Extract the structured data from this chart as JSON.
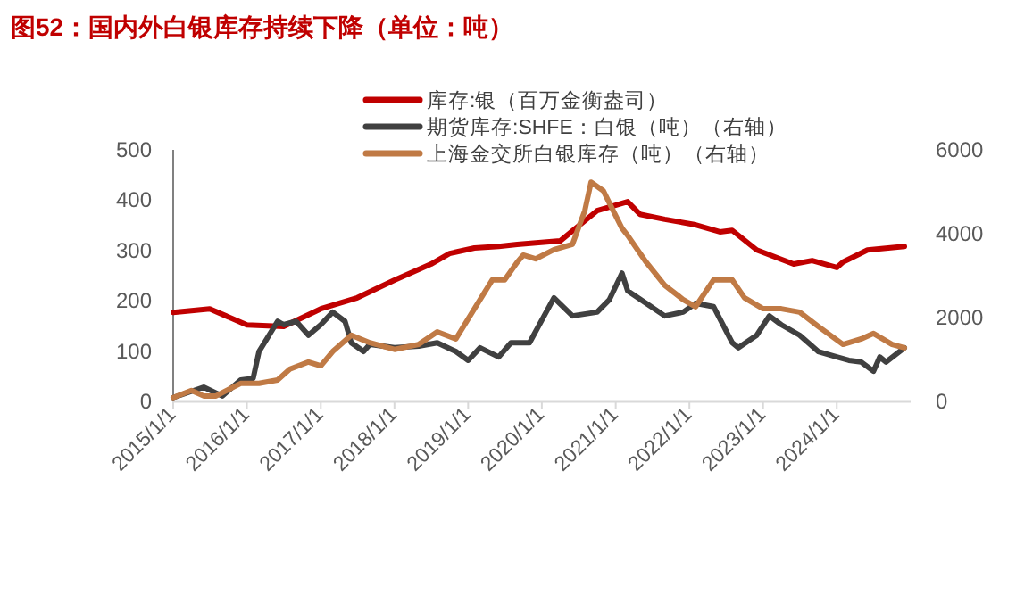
{
  "chart_data": {
    "type": "line",
    "title": "图52：国内外白银库存持续下降（单位：吨）",
    "legend": "top",
    "grid": false,
    "line_style": "solid",
    "marker": "none",
    "xlim": [
      "2015-01-01",
      "2025-01-01"
    ],
    "xticks": [
      {
        "value": "2015-01-01",
        "label": "2015/1/1"
      },
      {
        "value": "2016-01-01",
        "label": "2016/1/1"
      },
      {
        "value": "2017-01-01",
        "label": "2017/1/1"
      },
      {
        "value": "2018-01-01",
        "label": "2018/1/1"
      },
      {
        "value": "2019-01-01",
        "label": "2019/1/1"
      },
      {
        "value": "2020-01-01",
        "label": "2020/1/1"
      },
      {
        "value": "2021-01-01",
        "label": "2021/1/1"
      },
      {
        "value": "2022-01-01",
        "label": "2022/1/1"
      },
      {
        "value": "2023-01-01",
        "label": "2023/1/1"
      },
      {
        "value": "2024-01-01",
        "label": "2024/1/1"
      }
    ],
    "ylim": [
      0,
      500
    ],
    "yticks": [
      0,
      100,
      200,
      300,
      400,
      500
    ],
    "y2lim": [
      0,
      6000
    ],
    "y2ticks": [
      0,
      2000,
      4000,
      6000
    ],
    "series": [
      {
        "name": "库存:银（百万金衡盎司）",
        "color": "#c00000",
        "x": [
          "2015-01",
          "2015-07",
          "2016-01",
          "2016-07",
          "2017-01",
          "2017-07",
          "2018-01",
          "2018-07",
          "2018-10",
          "2019-02",
          "2019-06",
          "2019-09",
          "2020-04",
          "2020-10",
          "2021-03",
          "2021-05",
          "2021-09",
          "2022-02",
          "2022-06",
          "2022-08",
          "2022-12",
          "2023-06",
          "2023-09",
          "2024-01",
          "2024-02",
          "2024-06",
          "2024-12"
        ],
        "values": [
          177,
          184,
          152,
          149,
          184,
          206,
          241,
          273,
          294,
          305,
          308,
          312,
          319,
          379,
          397,
          372,
          362,
          351,
          337,
          340,
          301,
          273,
          280,
          266,
          277,
          301,
          308
        ]
      },
      {
        "name": "期货库存:SHFE：白银（吨）（右轴）",
        "color": "#404040",
        "axis": "y2",
        "x": [
          "2015-01",
          "2015-06",
          "2015-09",
          "2015-12",
          "2016-02",
          "2016-03",
          "2016-06",
          "2016-07",
          "2016-09",
          "2016-11",
          "2017-01",
          "2017-03",
          "2017-05",
          "2017-06",
          "2017-08",
          "2017-09",
          "2018-01",
          "2018-05",
          "2018-08",
          "2018-11",
          "2019-01",
          "2019-03",
          "2019-06",
          "2019-08",
          "2019-11",
          "2020-03",
          "2020-06",
          "2020-10",
          "2020-12",
          "2021-02",
          "2021-03",
          "2021-06",
          "2021-09",
          "2021-12",
          "2022-02",
          "2022-05",
          "2022-08",
          "2022-09",
          "2022-12",
          "2023-02",
          "2023-04",
          "2023-07",
          "2023-10",
          "2024-01",
          "2024-03",
          "2024-05",
          "2024-07",
          "2024-08",
          "2024-09",
          "2024-12"
        ],
        "values": [
          90,
          340,
          130,
          510,
          550,
          1190,
          1910,
          1830,
          1910,
          1580,
          1830,
          2130,
          1910,
          1400,
          1190,
          1360,
          1280,
          1320,
          1400,
          1190,
          980,
          1280,
          1060,
          1400,
          1400,
          2470,
          2040,
          2130,
          2430,
          3060,
          2640,
          2340,
          2040,
          2130,
          2340,
          2260,
          1400,
          1280,
          1580,
          2040,
          1830,
          1580,
          1190,
          1060,
          980,
          940,
          720,
          1060,
          940,
          1280
        ]
      },
      {
        "name": "上海金交所白银库存（吨）（右轴）",
        "color": "#c07a45",
        "axis": "y2",
        "x": [
          "2015-01",
          "2015-04",
          "2015-06",
          "2015-08",
          "2015-12",
          "2016-03",
          "2016-06",
          "2016-08",
          "2016-11",
          "2017-01",
          "2017-03",
          "2017-06",
          "2017-09",
          "2018-01",
          "2018-05",
          "2018-08",
          "2018-11",
          "2019-02",
          "2019-05",
          "2019-07",
          "2019-09",
          "2019-10",
          "2019-12",
          "2020-03",
          "2020-06",
          "2020-08",
          "2020-09",
          "2020-11",
          "2021-02",
          "2021-03",
          "2021-06",
          "2021-09",
          "2021-12",
          "2022-02",
          "2022-05",
          "2022-08",
          "2022-10",
          "2023-01",
          "2023-04",
          "2023-07",
          "2023-10",
          "2024-02",
          "2024-05",
          "2024-07",
          "2024-10",
          "2024-12"
        ],
        "values": [
          90,
          260,
          130,
          130,
          430,
          430,
          510,
          770,
          940,
          850,
          1190,
          1580,
          1400,
          1240,
          1360,
          1660,
          1490,
          2210,
          2900,
          2900,
          3320,
          3490,
          3400,
          3620,
          3750,
          4550,
          5230,
          5020,
          4130,
          3960,
          3320,
          2770,
          2430,
          2260,
          2900,
          2900,
          2470,
          2210,
          2210,
          2130,
          1790,
          1360,
          1490,
          1620,
          1360,
          1280
        ]
      }
    ]
  }
}
